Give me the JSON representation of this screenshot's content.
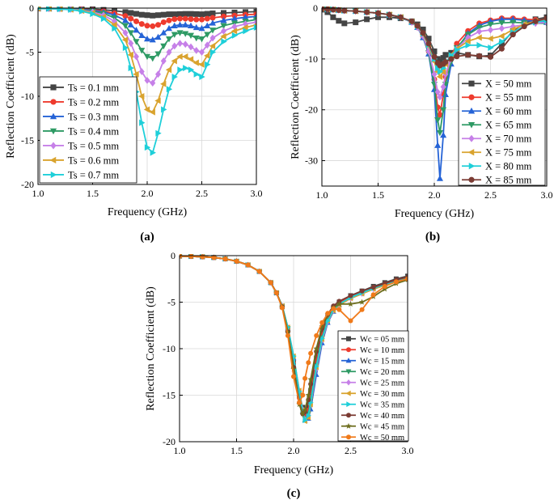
{
  "chart_data": [
    {
      "type": "line",
      "panel": "(a)",
      "xlabel": "Frequency (GHz)",
      "ylabel": "Reflection Coefficient (dB)",
      "xlim": [
        1.0,
        3.0
      ],
      "ylim": [
        -20,
        0
      ],
      "xticks": [
        "1.0",
        "1.5",
        "2.0",
        "2.5",
        "3.0"
      ],
      "yticks": [
        "0",
        "-5",
        "-10",
        "-15",
        "-20"
      ],
      "grid": true,
      "legend_position": "bottom-left",
      "x": [
        1.0,
        1.1,
        1.2,
        1.3,
        1.4,
        1.5,
        1.6,
        1.7,
        1.8,
        1.85,
        1.9,
        1.95,
        2.0,
        2.05,
        2.1,
        2.15,
        2.2,
        2.25,
        2.3,
        2.35,
        2.4,
        2.45,
        2.5,
        2.55,
        2.6,
        2.7,
        2.8,
        2.9,
        3.0
      ],
      "series": [
        {
          "name": "Ts = 0.1 mm",
          "color": "#444444",
          "marker": "square",
          "values": [
            -0.05,
            -0.05,
            -0.05,
            -0.06,
            -0.08,
            -0.12,
            -0.2,
            -0.3,
            -0.45,
            -0.55,
            -0.65,
            -0.75,
            -0.8,
            -0.85,
            -0.8,
            -0.75,
            -0.7,
            -0.7,
            -0.68,
            -0.66,
            -0.66,
            -0.68,
            -0.7,
            -0.65,
            -0.6,
            -0.55,
            -0.5,
            -0.45,
            -0.4
          ]
        },
        {
          "name": "Ts = 0.2 mm",
          "color": "#ee3b2e",
          "marker": "circle",
          "values": [
            -0.05,
            -0.05,
            -0.06,
            -0.08,
            -0.12,
            -0.2,
            -0.35,
            -0.6,
            -0.9,
            -1.2,
            -1.5,
            -1.8,
            -2.0,
            -2.05,
            -1.9,
            -1.6,
            -1.4,
            -1.25,
            -1.2,
            -1.2,
            -1.25,
            -1.3,
            -1.3,
            -1.2,
            -1.1,
            -0.95,
            -0.85,
            -0.75,
            -0.7
          ]
        },
        {
          "name": "Ts = 0.3 mm",
          "color": "#2563d6",
          "marker": "triangle",
          "values": [
            -0.05,
            -0.06,
            -0.07,
            -0.1,
            -0.15,
            -0.25,
            -0.45,
            -0.8,
            -1.4,
            -1.9,
            -2.5,
            -3.1,
            -3.5,
            -3.6,
            -3.3,
            -2.8,
            -2.3,
            -2.0,
            -1.9,
            -1.9,
            -2.0,
            -2.2,
            -2.3,
            -2.0,
            -1.7,
            -1.4,
            -1.2,
            -1.05,
            -0.95
          ]
        },
        {
          "name": "Ts = 0.4 mm",
          "color": "#2e9a64",
          "marker": "triangle-down",
          "values": [
            -0.05,
            -0.06,
            -0.08,
            -0.12,
            -0.2,
            -0.35,
            -0.6,
            -1.1,
            -2.0,
            -2.8,
            -3.8,
            -4.8,
            -5.5,
            -5.7,
            -5.2,
            -4.3,
            -3.5,
            -3.0,
            -2.8,
            -2.9,
            -3.1,
            -3.4,
            -3.5,
            -3.0,
            -2.5,
            -2.0,
            -1.7,
            -1.5,
            -1.3
          ]
        },
        {
          "name": "Ts = 0.5 mm",
          "color": "#c680e8",
          "marker": "diamond",
          "values": [
            -0.05,
            -0.06,
            -0.09,
            -0.14,
            -0.25,
            -0.45,
            -0.8,
            -1.5,
            -2.8,
            -4.0,
            -5.5,
            -7.2,
            -8.2,
            -8.5,
            -7.5,
            -6.0,
            -5.0,
            -4.3,
            -4.0,
            -4.1,
            -4.4,
            -4.8,
            -5.0,
            -4.2,
            -3.4,
            -2.6,
            -2.1,
            -1.8,
            -1.6
          ]
        },
        {
          "name": "Ts = 0.6 mm",
          "color": "#d9a32e",
          "marker": "triangle-left",
          "values": [
            -0.05,
            -0.07,
            -0.1,
            -0.16,
            -0.3,
            -0.55,
            -1.0,
            -1.9,
            -3.6,
            -5.3,
            -7.5,
            -10.0,
            -11.5,
            -11.8,
            -10.5,
            -8.6,
            -7.0,
            -6.0,
            -5.5,
            -5.5,
            -5.8,
            -6.2,
            -6.4,
            -5.4,
            -4.3,
            -3.2,
            -2.6,
            -2.2,
            -1.9
          ]
        },
        {
          "name": "Ts = 0.7 mm",
          "color": "#1ecfd9",
          "marker": "triangle-right",
          "values": [
            -0.05,
            -0.07,
            -0.11,
            -0.18,
            -0.35,
            -0.65,
            -1.2,
            -2.3,
            -4.5,
            -6.8,
            -9.5,
            -13.0,
            -15.8,
            -16.4,
            -14.2,
            -11.5,
            -9.2,
            -7.8,
            -7.0,
            -6.8,
            -7.0,
            -7.5,
            -7.8,
            -6.4,
            -5.0,
            -3.8,
            -3.1,
            -2.6,
            -2.2
          ]
        }
      ]
    },
    {
      "type": "line",
      "panel": "(b)",
      "xlabel": "Frequency (GHz)",
      "ylabel": "Reflection Coefficient (dB)",
      "xlim": [
        1.0,
        3.0
      ],
      "ylim": [
        -35,
        0
      ],
      "xticks": [
        "1.0",
        "1.5",
        "2.0",
        "2.5",
        "3.0"
      ],
      "yticks": [
        "0",
        "-10",
        "-20",
        "-30"
      ],
      "grid": true,
      "legend_position": "bottom-right",
      "x": [
        1.0,
        1.05,
        1.1,
        1.15,
        1.2,
        1.3,
        1.4,
        1.5,
        1.6,
        1.7,
        1.8,
        1.85,
        1.9,
        1.95,
        2.0,
        2.03,
        2.05,
        2.08,
        2.1,
        2.15,
        2.2,
        2.3,
        2.4,
        2.5,
        2.6,
        2.7,
        2.8,
        2.9,
        3.0
      ],
      "series": [
        {
          "name": "X = 50 mm",
          "color": "#444444",
          "marker": "square",
          "values": [
            -0.3,
            -0.8,
            -1.8,
            -2.5,
            -3.0,
            -2.8,
            -2.2,
            -1.8,
            -1.8,
            -2.0,
            -2.6,
            -3.2,
            -4.2,
            -6.0,
            -8.5,
            -10.0,
            -10.5,
            -9.8,
            -9.2,
            -8.8,
            -8.8,
            -9.2,
            -9.5,
            -9.3,
            -7.0,
            -4.5,
            -3.0,
            -2.2,
            -1.8
          ]
        },
        {
          "name": "X = 55 mm",
          "color": "#ee3b2e",
          "marker": "circle",
          "values": [
            -0.1,
            -0.2,
            -0.3,
            -0.4,
            -0.5,
            -0.6,
            -0.8,
            -1.0,
            -1.3,
            -1.8,
            -2.8,
            -3.8,
            -5.5,
            -8.5,
            -14.0,
            -19.5,
            -21.0,
            -17.0,
            -13.5,
            -9.5,
            -7.0,
            -4.5,
            -3.0,
            -2.4,
            -2.0,
            -2.0,
            -2.2,
            -2.3,
            -2.4
          ]
        },
        {
          "name": "X = 60 mm",
          "color": "#2563d6",
          "marker": "triangle",
          "values": [
            -0.1,
            -0.2,
            -0.3,
            -0.4,
            -0.5,
            -0.6,
            -0.8,
            -1.0,
            -1.3,
            -1.8,
            -2.8,
            -3.8,
            -5.8,
            -9.0,
            -16.0,
            -27.0,
            -33.5,
            -25.0,
            -17.0,
            -11.0,
            -8.0,
            -5.0,
            -3.4,
            -2.6,
            -2.2,
            -2.2,
            -2.4,
            -2.6,
            -2.8
          ]
        },
        {
          "name": "X = 65 mm",
          "color": "#2e9a64",
          "marker": "triangle-down",
          "values": [
            -0.1,
            -0.2,
            -0.3,
            -0.4,
            -0.5,
            -0.6,
            -0.8,
            -1.0,
            -1.3,
            -1.8,
            -2.8,
            -3.8,
            -5.6,
            -8.8,
            -15.0,
            -22.0,
            -24.5,
            -20.0,
            -15.0,
            -10.5,
            -7.8,
            -5.2,
            -3.8,
            -3.2,
            -2.9,
            -2.8,
            -2.9,
            -3.0,
            -3.0
          ]
        },
        {
          "name": "X = 70 mm",
          "color": "#c680e8",
          "marker": "diamond",
          "values": [
            -0.1,
            -0.2,
            -0.3,
            -0.4,
            -0.5,
            -0.6,
            -0.8,
            -1.0,
            -1.3,
            -1.8,
            -2.8,
            -3.8,
            -5.5,
            -8.5,
            -13.0,
            -16.5,
            -17.5,
            -15.5,
            -13.0,
            -10.0,
            -8.0,
            -5.8,
            -4.6,
            -4.3,
            -4.0,
            -3.6,
            -3.3,
            -3.0,
            -2.8
          ]
        },
        {
          "name": "X = 75 mm",
          "color": "#d9a32e",
          "marker": "triangle-left",
          "values": [
            -0.1,
            -0.2,
            -0.3,
            -0.4,
            -0.5,
            -0.6,
            -0.8,
            -1.0,
            -1.3,
            -1.8,
            -2.7,
            -3.6,
            -5.2,
            -7.5,
            -10.5,
            -12.5,
            -13.5,
            -12.5,
            -11.0,
            -9.2,
            -8.0,
            -6.5,
            -5.8,
            -6.0,
            -5.5,
            -4.2,
            -3.2,
            -2.6,
            -2.2
          ]
        },
        {
          "name": "X = 80 mm",
          "color": "#1ecfd9",
          "marker": "triangle-right",
          "values": [
            -0.1,
            -0.2,
            -0.3,
            -0.4,
            -0.5,
            -0.6,
            -0.8,
            -1.0,
            -1.3,
            -1.8,
            -2.7,
            -3.6,
            -5.0,
            -7.2,
            -10.0,
            -11.8,
            -12.5,
            -11.8,
            -10.8,
            -9.3,
            -8.2,
            -7.3,
            -7.3,
            -7.8,
            -6.6,
            -4.8,
            -3.5,
            -2.8,
            -2.4
          ]
        },
        {
          "name": "X = 85 mm",
          "color": "#7b3b33",
          "marker": "circle",
          "values": [
            -0.1,
            -0.2,
            -0.3,
            -0.4,
            -0.5,
            -0.6,
            -0.8,
            -1.0,
            -1.3,
            -1.8,
            -2.6,
            -3.5,
            -4.9,
            -7.0,
            -9.6,
            -10.8,
            -11.3,
            -11.0,
            -10.6,
            -10.0,
            -9.5,
            -9.2,
            -9.4,
            -9.6,
            -8.0,
            -5.2,
            -3.6,
            -2.6,
            -2.0
          ]
        }
      ]
    },
    {
      "type": "line",
      "panel": "(c)",
      "xlabel": "Frequency (GHz)",
      "ylabel": "Reflection Coefficient (dB)",
      "xlim": [
        1.0,
        3.0
      ],
      "ylim": [
        -20,
        0
      ],
      "xticks": [
        "1.0",
        "1.5",
        "2.0",
        "2.5",
        "3.0"
      ],
      "yticks": [
        "0",
        "-5",
        "-10",
        "-15",
        "-20"
      ],
      "grid": true,
      "legend_position": "bottom-right",
      "x": [
        1.0,
        1.1,
        1.2,
        1.3,
        1.4,
        1.5,
        1.6,
        1.7,
        1.8,
        1.85,
        1.9,
        1.95,
        2.0,
        2.05,
        2.08,
        2.1,
        2.13,
        2.15,
        2.2,
        2.25,
        2.3,
        2.35,
        2.4,
        2.5,
        2.6,
        2.7,
        2.8,
        2.9,
        3.0
      ],
      "series": [
        {
          "name": "Wc = 05 mm",
          "color": "#444444",
          "marker": "square",
          "values": [
            -0.05,
            -0.08,
            -0.12,
            -0.2,
            -0.35,
            -0.6,
            -1.0,
            -1.7,
            -2.9,
            -4.0,
            -5.5,
            -8.0,
            -11.5,
            -15.0,
            -16.3,
            -16.8,
            -16.2,
            -14.5,
            -11.0,
            -8.3,
            -6.6,
            -5.6,
            -5.0,
            -4.3,
            -3.8,
            -3.3,
            -2.9,
            -2.5,
            -2.2
          ]
        },
        {
          "name": "Wc = 10 mm",
          "color": "#ee3b2e",
          "marker": "circle",
          "values": [
            -0.05,
            -0.08,
            -0.12,
            -0.2,
            -0.35,
            -0.6,
            -1.0,
            -1.7,
            -2.9,
            -4.0,
            -5.5,
            -8.0,
            -11.5,
            -15.3,
            -16.8,
            -17.3,
            -16.6,
            -15.0,
            -11.3,
            -8.5,
            -6.8,
            -5.7,
            -5.1,
            -4.4,
            -3.9,
            -3.4,
            -3.0,
            -2.6,
            -2.3
          ]
        },
        {
          "name": "Wc = 15 mm",
          "color": "#2563d6",
          "marker": "triangle",
          "values": [
            -0.05,
            -0.08,
            -0.12,
            -0.2,
            -0.35,
            -0.6,
            -1.0,
            -1.7,
            -2.9,
            -4.0,
            -5.4,
            -7.8,
            -11.0,
            -14.8,
            -16.8,
            -17.7,
            -17.5,
            -16.5,
            -12.8,
            -9.4,
            -7.2,
            -6.0,
            -5.3,
            -4.5,
            -4.0,
            -3.5,
            -3.1,
            -2.7,
            -2.4
          ]
        },
        {
          "name": "Wc = 20 mm",
          "color": "#2e9a64",
          "marker": "triangle-down",
          "values": [
            -0.05,
            -0.08,
            -0.12,
            -0.2,
            -0.35,
            -0.6,
            -1.0,
            -1.7,
            -2.9,
            -4.0,
            -5.4,
            -7.8,
            -11.0,
            -14.8,
            -16.6,
            -17.5,
            -17.0,
            -15.5,
            -11.8,
            -8.8,
            -6.9,
            -5.8,
            -5.2,
            -4.5,
            -4.0,
            -3.5,
            -3.1,
            -2.7,
            -2.4
          ]
        },
        {
          "name": "Wc = 25 mm",
          "color": "#c680e8",
          "marker": "diamond",
          "values": [
            -0.05,
            -0.08,
            -0.12,
            -0.2,
            -0.35,
            -0.6,
            -1.0,
            -1.7,
            -2.9,
            -4.0,
            -5.4,
            -7.7,
            -10.8,
            -14.5,
            -16.5,
            -17.6,
            -17.3,
            -16.0,
            -12.2,
            -9.1,
            -7.1,
            -5.9,
            -5.3,
            -4.6,
            -4.1,
            -3.6,
            -3.2,
            -2.8,
            -2.5
          ]
        },
        {
          "name": "Wc = 30 mm",
          "color": "#d9a32e",
          "marker": "triangle-left",
          "values": [
            -0.05,
            -0.08,
            -0.12,
            -0.2,
            -0.35,
            -0.6,
            -1.0,
            -1.7,
            -2.9,
            -4.0,
            -5.4,
            -7.7,
            -10.8,
            -14.5,
            -16.6,
            -17.8,
            -17.4,
            -16.0,
            -12.0,
            -9.0,
            -7.0,
            -5.9,
            -5.3,
            -4.6,
            -4.1,
            -3.6,
            -3.2,
            -2.8,
            -2.5
          ]
        },
        {
          "name": "Wc = 35 mm",
          "color": "#1ecfd9",
          "marker": "triangle-right",
          "values": [
            -0.05,
            -0.08,
            -0.12,
            -0.2,
            -0.35,
            -0.6,
            -1.0,
            -1.7,
            -2.9,
            -4.0,
            -5.4,
            -7.7,
            -10.8,
            -14.6,
            -16.7,
            -17.7,
            -17.2,
            -15.8,
            -11.9,
            -8.9,
            -7.0,
            -5.8,
            -5.2,
            -4.5,
            -4.0,
            -3.5,
            -3.1,
            -2.7,
            -2.4
          ]
        },
        {
          "name": "Wc = 40 mm",
          "color": "#7b3b33",
          "marker": "circle",
          "values": [
            -0.05,
            -0.08,
            -0.12,
            -0.2,
            -0.35,
            -0.6,
            -1.0,
            -1.7,
            -2.9,
            -4.0,
            -5.5,
            -8.2,
            -12.0,
            -15.8,
            -17.0,
            -16.8,
            -15.5,
            -13.8,
            -10.3,
            -7.8,
            -6.3,
            -5.4,
            -4.9,
            -4.3,
            -3.8,
            -3.4,
            -3.0,
            -2.6,
            -2.3
          ]
        },
        {
          "name": "Wc = 45 mm",
          "color": "#6e6e1e",
          "marker": "star",
          "values": [
            -0.05,
            -0.08,
            -0.12,
            -0.2,
            -0.35,
            -0.6,
            -1.0,
            -1.7,
            -2.9,
            -4.0,
            -5.5,
            -8.2,
            -12.2,
            -16.0,
            -17.0,
            -16.6,
            -15.0,
            -13.3,
            -10.0,
            -7.6,
            -6.3,
            -5.6,
            -5.2,
            -5.2,
            -5.0,
            -4.4,
            -3.6,
            -3.0,
            -2.6
          ]
        },
        {
          "name": "Wc = 50 mm",
          "color": "#f07a1a",
          "marker": "circle",
          "values": [
            -0.05,
            -0.08,
            -0.12,
            -0.2,
            -0.35,
            -0.6,
            -1.0,
            -1.7,
            -2.9,
            -4.0,
            -5.6,
            -8.6,
            -13.0,
            -15.8,
            -15.0,
            -13.2,
            -11.5,
            -10.5,
            -8.6,
            -7.2,
            -6.2,
            -5.7,
            -5.8,
            -7.0,
            -5.8,
            -4.2,
            -3.3,
            -2.8,
            -2.5
          ]
        }
      ]
    }
  ]
}
